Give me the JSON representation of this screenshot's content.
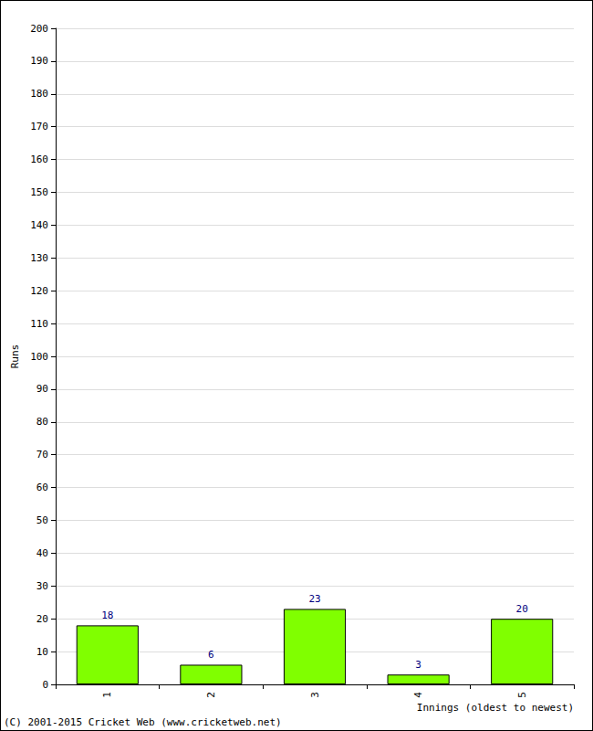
{
  "chart_data": {
    "type": "bar",
    "x_label": "Innings (oldest to newest)",
    "y_label": "Runs",
    "annotations": [
      "(C) 2001-2015 Cricket Web (www.cricketweb.net)"
    ],
    "categories": [
      "1",
      "2",
      "3",
      "4",
      "5"
    ],
    "values": [
      18,
      6,
      23,
      3,
      20
    ],
    "color": "#80ff00",
    "ylim": [
      0,
      200
    ],
    "yticks": [
      0,
      10,
      20,
      30,
      40,
      50,
      60,
      70,
      80,
      90,
      100,
      110,
      120,
      130,
      140,
      150,
      160,
      170,
      180,
      190,
      200
    ],
    "grid": true,
    "data_labels": true
  }
}
